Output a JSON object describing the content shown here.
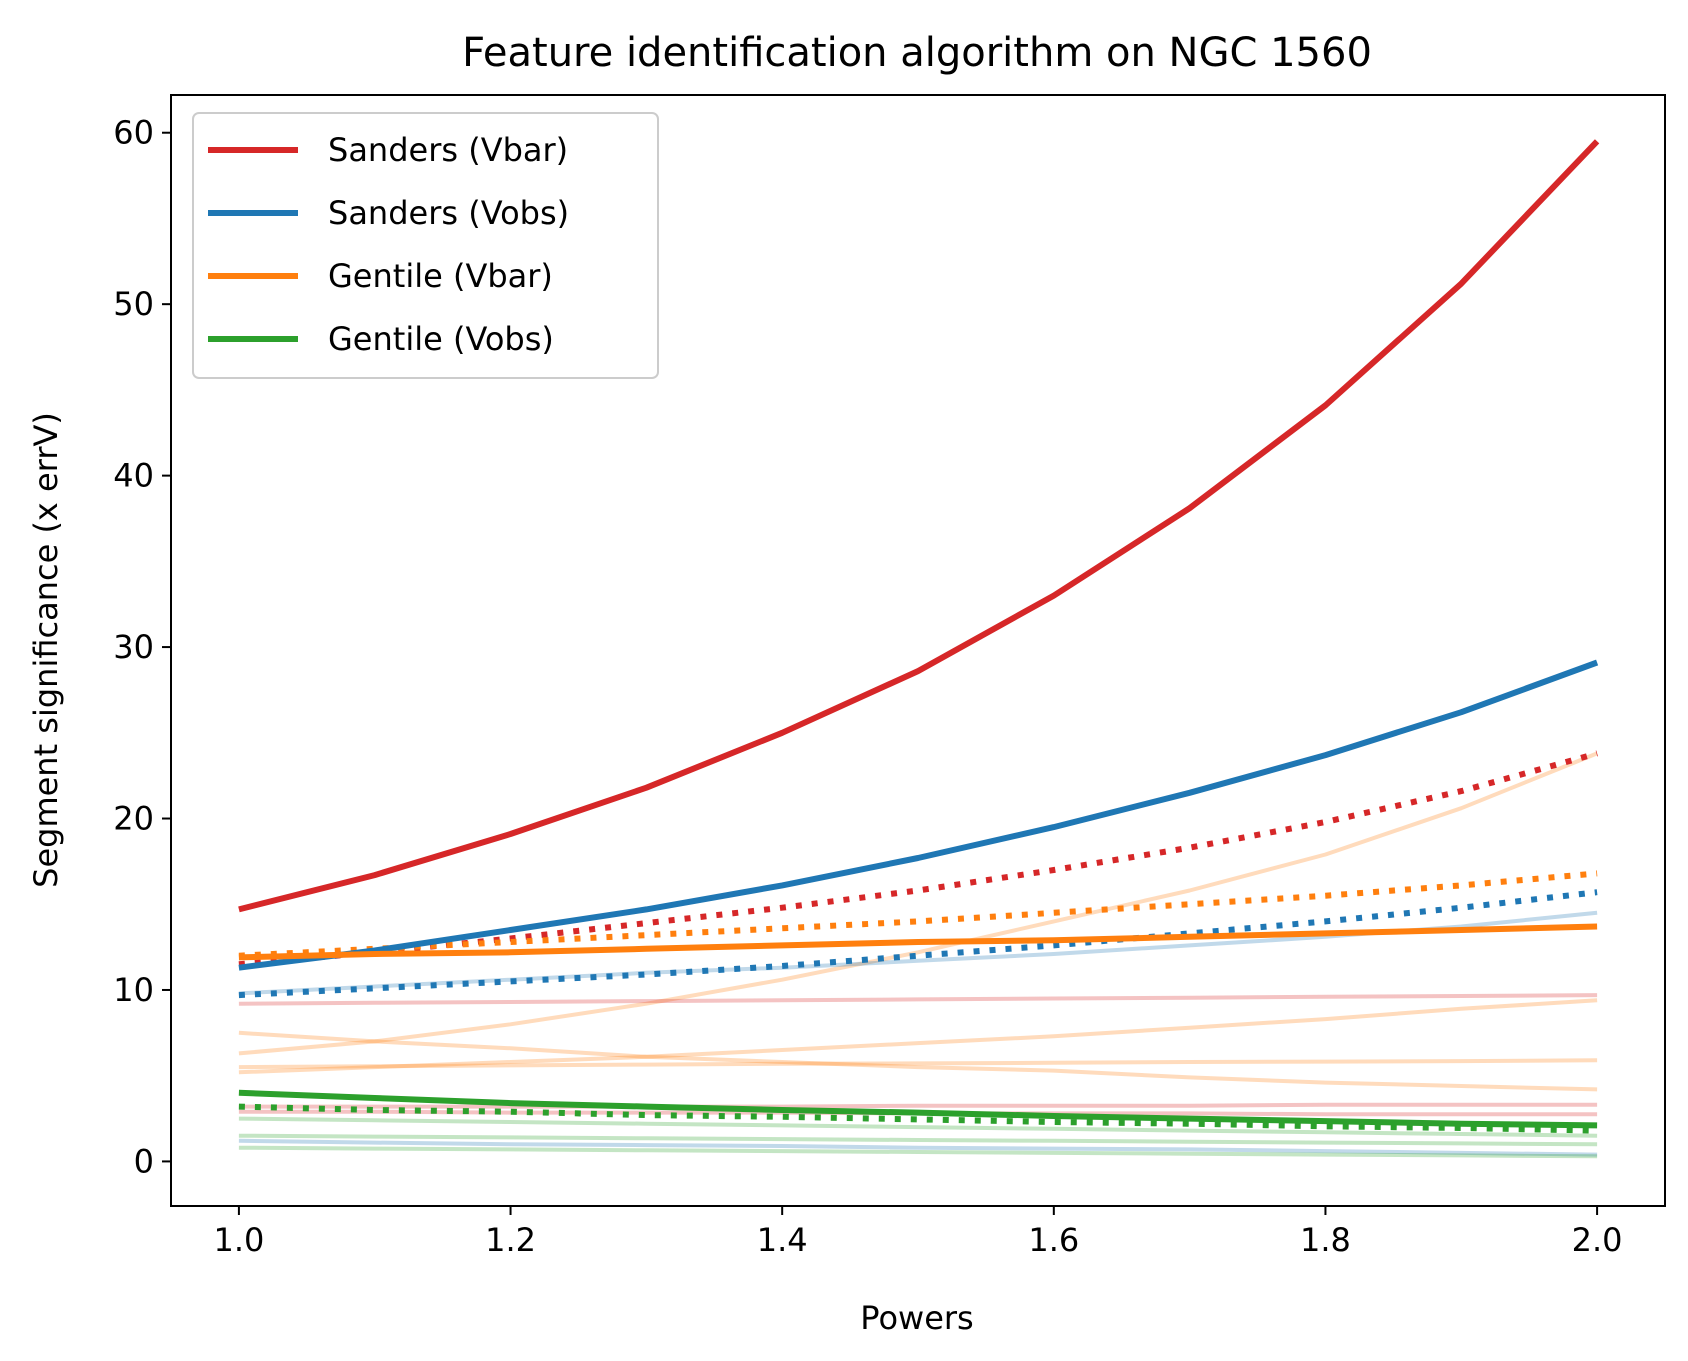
{
  "chart_data": {
    "type": "line",
    "title": "Feature identification algorithm on NGC 1560",
    "xlabel": "Powers",
    "ylabel": "Segment significance (x errV)",
    "xlim": [
      0.95,
      2.05
    ],
    "ylim": [
      -2.6,
      62.2
    ],
    "xticks": [
      1.0,
      1.2,
      1.4,
      1.6,
      1.8,
      2.0
    ],
    "xtick_labels": [
      "1.0",
      "1.2",
      "1.4",
      "1.6",
      "1.8",
      "2.0"
    ],
    "yticks": [
      0,
      10,
      20,
      30,
      40,
      50,
      60
    ],
    "ytick_labels": [
      "0",
      "10",
      "20",
      "30",
      "40",
      "50",
      "60"
    ],
    "grid": false,
    "legend_position": "top-left",
    "colors": {
      "red": "#d62728",
      "blue": "#1f77b4",
      "orange": "#ff7f0e",
      "green": "#2ca02c"
    },
    "x": [
      1.0,
      1.1,
      1.2,
      1.3,
      1.4,
      1.5,
      1.6,
      1.7,
      1.8,
      1.9,
      2.0
    ],
    "series": [
      {
        "name": "",
        "color": "#ff7f0e",
        "style": "faint",
        "values": [
          6.3,
          7.0,
          8.0,
          9.2,
          10.6,
          12.2,
          14.0,
          15.8,
          17.9,
          20.6,
          23.8
        ]
      },
      {
        "name": "",
        "color": "#ff7f0e",
        "style": "faint",
        "values": [
          5.2,
          5.5,
          5.8,
          6.1,
          6.5,
          6.9,
          7.3,
          7.8,
          8.3,
          8.9,
          9.4
        ]
      },
      {
        "name": "",
        "color": "#ff7f0e",
        "style": "faint",
        "values": [
          7.5,
          7.0,
          6.6,
          6.1,
          5.8,
          5.5,
          5.3,
          4.9,
          4.6,
          4.4,
          4.2
        ]
      },
      {
        "name": "",
        "color": "#ff7f0e",
        "style": "faint",
        "values": [
          5.5,
          5.55,
          5.6,
          5.65,
          5.7,
          5.72,
          5.75,
          5.8,
          5.82,
          5.85,
          5.9
        ]
      },
      {
        "name": "",
        "color": "#1f77b4",
        "style": "faint",
        "values": [
          9.8,
          10.2,
          10.6,
          11.0,
          11.3,
          11.7,
          12.1,
          12.6,
          13.1,
          13.7,
          14.5
        ]
      },
      {
        "name": "",
        "color": "#d62728",
        "style": "faint",
        "values": [
          9.2,
          9.25,
          9.3,
          9.35,
          9.4,
          9.45,
          9.5,
          9.55,
          9.6,
          9.65,
          9.7
        ]
      },
      {
        "name": "",
        "color": "#d62728",
        "style": "faint",
        "values": [
          3.2,
          3.2,
          3.2,
          3.2,
          3.2,
          3.25,
          3.25,
          3.25,
          3.3,
          3.3,
          3.3
        ]
      },
      {
        "name": "",
        "color": "#d62728",
        "style": "faint",
        "values": [
          2.9,
          2.9,
          2.85,
          2.85,
          2.85,
          2.8,
          2.8,
          2.8,
          2.75,
          2.75,
          2.75
        ]
      },
      {
        "name": "",
        "color": "#2ca02c",
        "style": "faint",
        "values": [
          2.5,
          2.4,
          2.3,
          2.2,
          2.1,
          2.0,
          1.9,
          1.8,
          1.7,
          1.6,
          1.5
        ]
      },
      {
        "name": "",
        "color": "#2ca02c",
        "style": "faint",
        "values": [
          1.5,
          1.45,
          1.4,
          1.35,
          1.3,
          1.25,
          1.2,
          1.15,
          1.1,
          1.05,
          1.0
        ]
      },
      {
        "name": "",
        "color": "#1f77b4",
        "style": "faint",
        "values": [
          1.2,
          1.1,
          1.0,
          0.95,
          0.9,
          0.8,
          0.75,
          0.7,
          0.6,
          0.5,
          0.4
        ]
      },
      {
        "name": "",
        "color": "#2ca02c",
        "style": "faint",
        "values": [
          0.8,
          0.75,
          0.7,
          0.65,
          0.6,
          0.55,
          0.5,
          0.45,
          0.4,
          0.35,
          0.3
        ]
      },
      {
        "name": "",
        "color": "#d62728",
        "style": "dotted",
        "values": [
          11.5,
          12.2,
          13.0,
          13.9,
          14.8,
          15.8,
          17.0,
          18.3,
          19.8,
          21.6,
          23.8
        ]
      },
      {
        "name": "",
        "color": "#ff7f0e",
        "style": "dotted",
        "values": [
          12.0,
          12.4,
          12.8,
          13.2,
          13.6,
          14.0,
          14.5,
          15.0,
          15.5,
          16.1,
          16.8
        ]
      },
      {
        "name": "",
        "color": "#1f77b4",
        "style": "dotted",
        "values": [
          9.7,
          10.1,
          10.5,
          10.9,
          11.4,
          12.0,
          12.6,
          13.3,
          14.0,
          14.8,
          15.7
        ]
      },
      {
        "name": "",
        "color": "#2ca02c",
        "style": "dotted",
        "values": [
          3.2,
          3.0,
          2.9,
          2.7,
          2.6,
          2.45,
          2.3,
          2.2,
          2.05,
          1.95,
          1.8
        ]
      },
      {
        "name": "Sanders (Vbar)",
        "color": "#d62728",
        "style": "solid",
        "values": [
          14.7,
          16.7,
          19.1,
          21.8,
          25.0,
          28.6,
          33.0,
          38.1,
          44.1,
          51.2,
          59.5
        ]
      },
      {
        "name": "Sanders (Vobs)",
        "color": "#1f77b4",
        "style": "solid",
        "values": [
          11.3,
          12.3,
          13.5,
          14.7,
          16.1,
          17.7,
          19.5,
          21.5,
          23.7,
          26.2,
          29.1
        ]
      },
      {
        "name": "Gentile (Vbar)",
        "color": "#ff7f0e",
        "style": "solid",
        "values": [
          11.9,
          12.1,
          12.2,
          12.4,
          12.6,
          12.8,
          12.9,
          13.1,
          13.3,
          13.5,
          13.7
        ]
      },
      {
        "name": "Gentile (Vobs)",
        "color": "#2ca02c",
        "style": "solid",
        "values": [
          4.0,
          3.7,
          3.4,
          3.2,
          3.0,
          2.85,
          2.65,
          2.5,
          2.35,
          2.2,
          2.1
        ]
      }
    ]
  }
}
